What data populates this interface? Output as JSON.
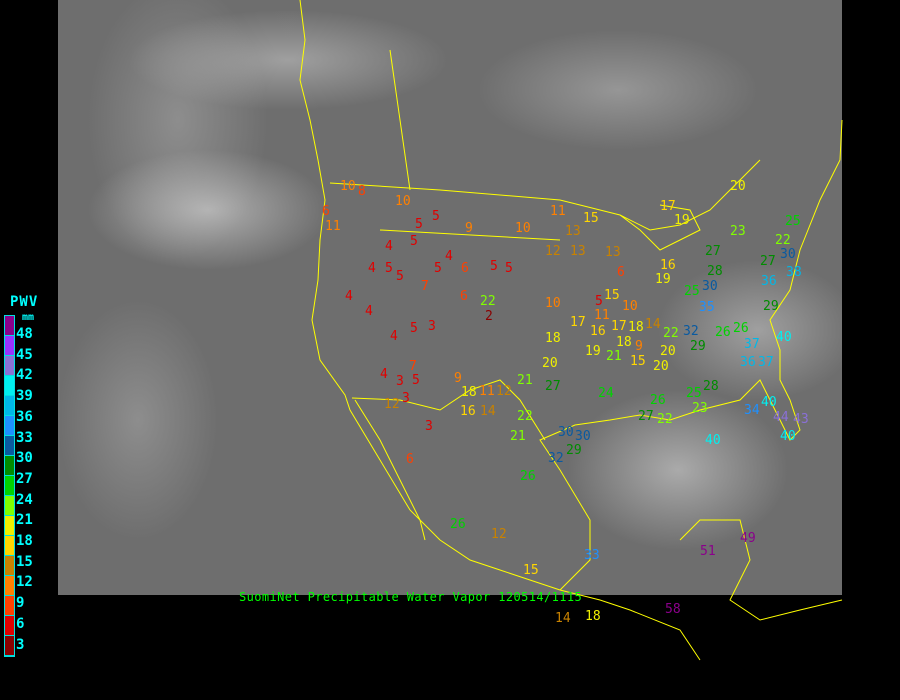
{
  "caption": "SuomiNet Precipitable Water Vapor 120514/1115",
  "legend": {
    "title": "PWV",
    "unit": "mm",
    "ticks": [
      "48",
      "45",
      "42",
      "39",
      "36",
      "33",
      "30",
      "27",
      "24",
      "21",
      "18",
      "15",
      "12",
      "9",
      "6",
      "3"
    ],
    "colors": [
      "#8b008b",
      "#9932ff",
      "#8a70d6",
      "#00f0f0",
      "#00b8e8",
      "#1e90ff",
      "#0a5aa0",
      "#008c00",
      "#00d200",
      "#80ff00",
      "#f0f000",
      "#ffd700",
      "#c88200",
      "#ff8000",
      "#ff4000",
      "#e00000",
      "#8b0000"
    ]
  },
  "map": {
    "border_color": "#ffff00",
    "background": "satellite-infrared-grayscale"
  },
  "stations": [
    "6",
    "10",
    "11",
    "8",
    "5",
    "5",
    "10",
    "9",
    "10",
    "4",
    "5",
    "5",
    "4",
    "4",
    "5",
    "6",
    "7",
    "5",
    "6",
    "5",
    "4",
    "4",
    "3",
    "5",
    "4",
    "3",
    "4",
    "22",
    "2",
    "5",
    "6",
    "12",
    "13",
    "13",
    "15",
    "11",
    "10",
    "17",
    "18",
    "20",
    "9",
    "21",
    "18",
    "11",
    "12",
    "16",
    "14",
    "12",
    "6",
    "7",
    "3",
    "5",
    "3",
    "5",
    "10",
    "9",
    "11",
    "13",
    "19",
    "16",
    "20",
    "20",
    "21",
    "19",
    "18",
    "17",
    "15",
    "18",
    "14",
    "16",
    "15",
    "17",
    "19",
    "22",
    "27",
    "25",
    "26",
    "22",
    "30",
    "32",
    "29",
    "25",
    "23",
    "28",
    "26",
    "30",
    "21",
    "22",
    "27",
    "24",
    "29",
    "30",
    "32",
    "35",
    "28",
    "26",
    "37",
    "40",
    "36",
    "37",
    "40",
    "34",
    "36",
    "38",
    "44",
    "43",
    "40",
    "40",
    "51",
    "49",
    "58",
    "18",
    "14",
    "15",
    "26",
    "12",
    "33",
    "29",
    "27",
    "30",
    "23",
    "20",
    "25",
    "22",
    "27",
    "26"
  ]
}
